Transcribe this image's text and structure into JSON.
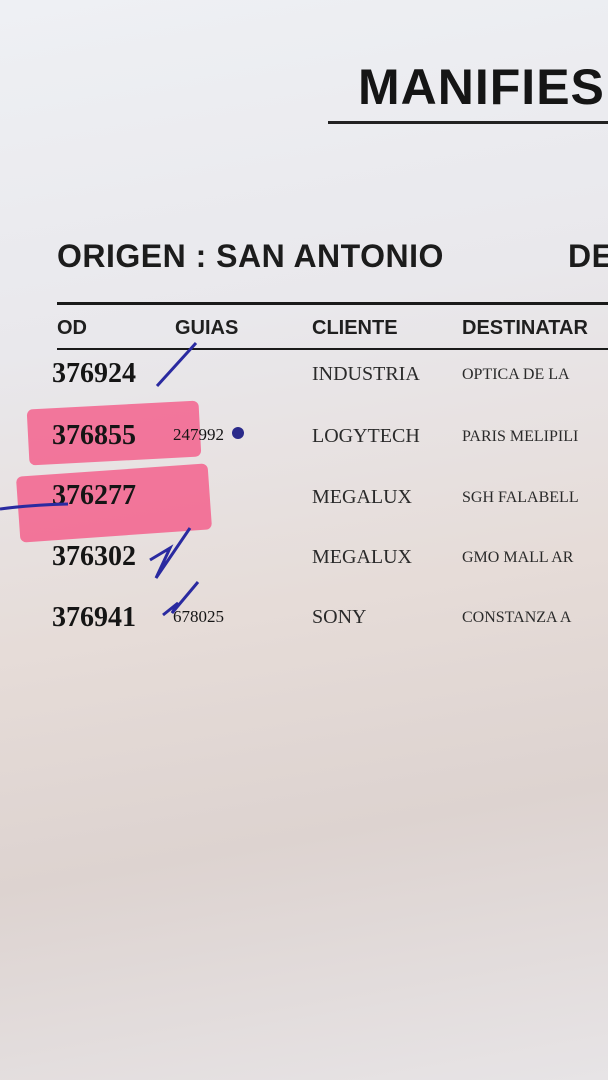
{
  "header": {
    "title": "MANIFIES",
    "origin": "ORIGEN : SAN ANTONIO",
    "destination_label": "DE"
  },
  "table": {
    "columns": [
      "OD",
      "GUIAS",
      "CLIENTE",
      "DESTINATAR"
    ],
    "rows": [
      {
        "code": "376924",
        "guia": "",
        "cliente": "INDUSTRIA",
        "destinatario": "OPTICA DE LA"
      },
      {
        "code": "376855",
        "guia": "247992",
        "cliente": "LOGYTECH",
        "destinatario": "PARIS MELIPILI"
      },
      {
        "code": "376277",
        "guia": "",
        "cliente": "MEGALUX",
        "destinatario": "SGH FALABELL"
      },
      {
        "code": "376302",
        "guia": "",
        "cliente": "MEGALUX",
        "destinatario": "GMO MALL AR"
      },
      {
        "code": "376941",
        "guia": "678025",
        "cliente": "SONY",
        "destinatario": "CONSTANZA A"
      }
    ]
  },
  "colors": {
    "highlighter": "#f55082",
    "pen": "#2a2aa0"
  }
}
